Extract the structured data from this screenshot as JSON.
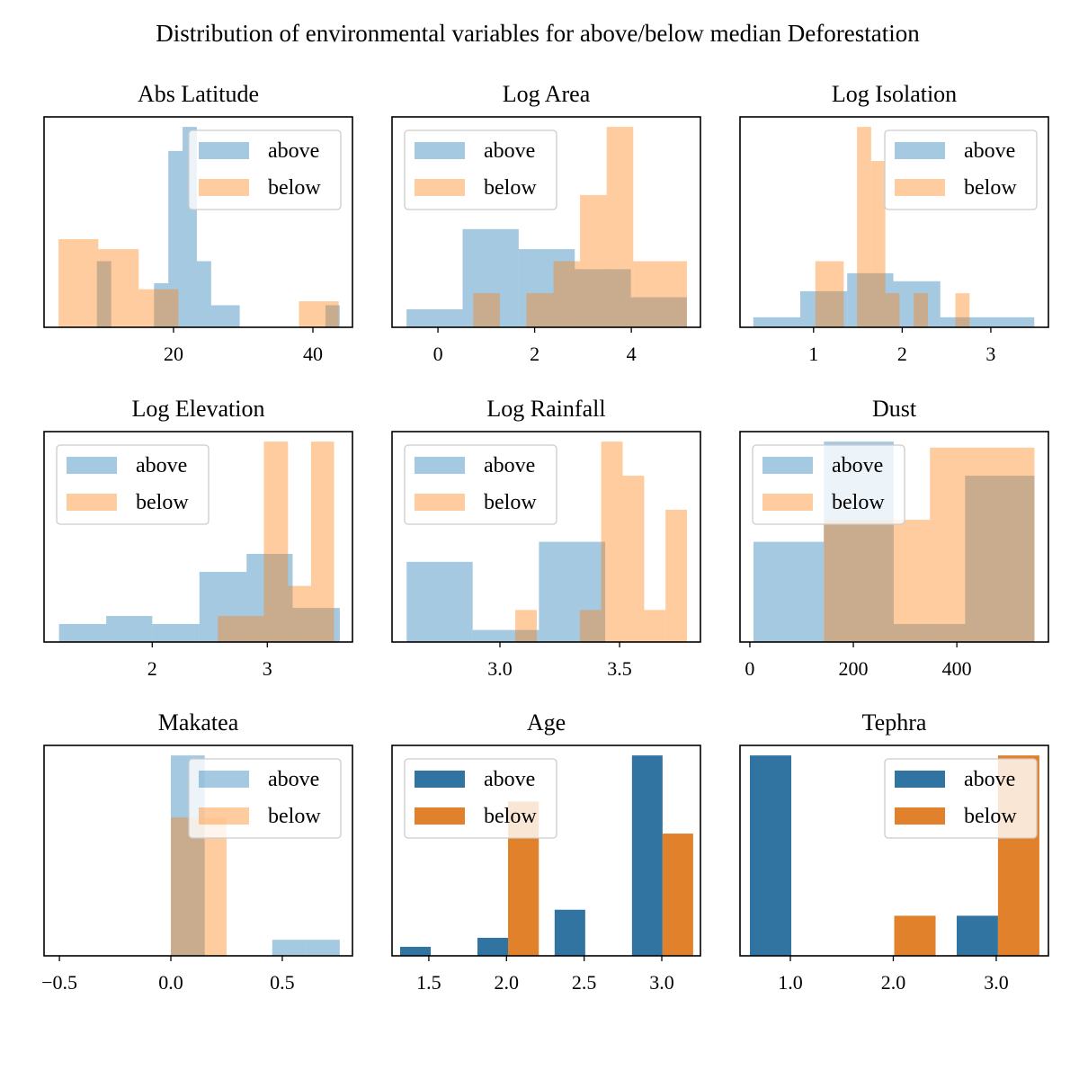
{
  "title": "Distribution of environmental variables for above/below median Deforestation",
  "chart_data": [
    {
      "type": "hist",
      "title": "Abs Latitude",
      "xlim": [
        1.42,
        45.68
      ],
      "ylim": [
        0,
        10.5
      ],
      "xticks": [
        20,
        40
      ],
      "legend": "upper right",
      "alpha": 0.4,
      "series": [
        {
          "name": "above",
          "color": "#1f77b4",
          "bins": [
            9.0,
            11.05,
            13.1,
            15.15,
            17.2,
            19.25,
            21.3,
            23.35,
            25.4,
            27.45,
            29.5,
            31.55,
            33.6,
            35.65,
            37.7,
            39.75,
            41.8,
            43.85
          ],
          "values": [
            3.3,
            0,
            0,
            0,
            2.2,
            8.8,
            10,
            3.3,
            1.1,
            1.1,
            0,
            0,
            0,
            0,
            0,
            0,
            1.1
          ]
        },
        {
          "name": "below",
          "color": "#ff7f0e",
          "bins": [
            3.5,
            9.2,
            15.0,
            20.7,
            26.5,
            32.2,
            38.0,
            43.7
          ],
          "values": [
            4.4,
            3.9,
            1.9,
            0,
            0,
            0,
            1.3
          ]
        }
      ]
    },
    {
      "type": "hist",
      "title": "Log Area",
      "xlim": [
        -0.95,
        5.43
      ],
      "ylim": [
        0,
        10.5
      ],
      "xticks": [
        0,
        2,
        4
      ],
      "legend": "upper left",
      "alpha": 0.4,
      "series": [
        {
          "name": "above",
          "color": "#1f77b4",
          "bins": [
            -0.65,
            0.51,
            1.67,
            2.83,
            3.99,
            5.15
          ],
          "values": [
            0.9,
            4.9,
            3.9,
            2.9,
            1.5
          ]
        },
        {
          "name": "below",
          "color": "#ff7f0e",
          "bins": [
            0.73,
            1.28,
            1.83,
            2.39,
            2.94,
            3.49,
            4.04,
            4.6,
            5.15
          ],
          "values": [
            1.7,
            0,
            1.7,
            3.3,
            6.6,
            10,
            3.3,
            3.3
          ]
        }
      ]
    },
    {
      "type": "hist",
      "title": "Log Isolation",
      "xlim": [
        0.17,
        3.65
      ],
      "ylim": [
        0,
        10.5
      ],
      "xticks": [
        1,
        2,
        3
      ],
      "legend": "upper right",
      "alpha": 0.4,
      "series": [
        {
          "name": "above",
          "color": "#1f77b4",
          "bins": [
            0.32,
            0.85,
            1.38,
            1.9,
            2.43,
            2.96,
            3.49
          ],
          "values": [
            0.5,
            1.8,
            2.7,
            2.3,
            0.5,
            0.5
          ]
        },
        {
          "name": "below",
          "color": "#ff7f0e",
          "bins": [
            1.02,
            1.18,
            1.34,
            1.49,
            1.65,
            1.81,
            1.97,
            2.13,
            2.29,
            2.44,
            2.6,
            2.76
          ],
          "values": [
            3.3,
            3.3,
            0,
            10,
            8.3,
            1.7,
            0,
            1.7,
            0,
            0,
            1.7
          ]
        }
      ]
    },
    {
      "type": "hist",
      "title": "Log Elevation",
      "xlim": [
        1.06,
        3.74
      ],
      "ylim": [
        0,
        10.5
      ],
      "xticks": [
        2,
        3
      ],
      "legend": "upper left",
      "alpha": 0.4,
      "series": [
        {
          "name": "above",
          "color": "#1f77b4",
          "bins": [
            1.19,
            1.6,
            2.0,
            2.41,
            2.82,
            3.22,
            3.63
          ],
          "values": [
            0.9,
            1.3,
            0.9,
            3.5,
            4.4,
            1.7
          ]
        },
        {
          "name": "below",
          "color": "#ff7f0e",
          "bins": [
            2.57,
            2.77,
            2.97,
            3.18,
            3.38,
            3.58
          ],
          "values": [
            1.3,
            1.3,
            10,
            2.8,
            10
          ]
        }
      ]
    },
    {
      "type": "hist",
      "title": "Log Rainfall",
      "xlim": [
        2.549,
        3.838
      ],
      "ylim": [
        0,
        10.5
      ],
      "xticks": [
        {
          "value": 3.0,
          "label": "3.0"
        },
        3.5
      ],
      "legend": "upper left",
      "alpha": 0.4,
      "series": [
        {
          "name": "above",
          "color": "#1f77b4",
          "bins": [
            2.61,
            2.886,
            3.163,
            3.44
          ],
          "values": [
            4.0,
            0.6,
            5.0
          ]
        },
        {
          "name": "below",
          "color": "#ff7f0e",
          "bins": [
            3.064,
            3.154,
            3.244,
            3.334,
            3.423,
            3.513,
            3.603,
            3.692,
            3.782
          ],
          "values": [
            1.6,
            0,
            0,
            1.6,
            10,
            8.3,
            1.6,
            6.6
          ]
        }
      ]
    },
    {
      "type": "hist",
      "title": "Dust",
      "xlim": [
        -19,
        577
      ],
      "ylim": [
        0,
        10.5
      ],
      "xticks": [
        0,
        200,
        400
      ],
      "legend": "upper left",
      "alpha": 0.4,
      "series": [
        {
          "name": "above",
          "color": "#1f77b4",
          "bins": [
            7,
            143,
            278,
            416,
            550
          ],
          "values": [
            5.0,
            10,
            0.9,
            8.3
          ]
        },
        {
          "name": "below",
          "color": "#ff7f0e",
          "bins": [
            143,
            348,
            550
          ],
          "values": [
            6.1,
            9.7
          ]
        }
      ]
    },
    {
      "type": "hist",
      "title": "Makatea",
      "xlim": [
        -0.569,
        0.815
      ],
      "ylim": [
        0,
        10.5
      ],
      "xticks": [
        {
          "value": -0.5,
          "label": "−0.5"
        },
        {
          "value": 0.0,
          "label": "0.0"
        },
        0.5
      ],
      "legend": "upper right",
      "alpha": 0.4,
      "series": [
        {
          "name": "above",
          "color": "#1f77b4",
          "bins": [
            0,
            0.152,
            0.303,
            0.455,
            0.606,
            0.758
          ],
          "values": [
            10,
            0,
            0,
            0.8,
            0.8
          ]
        },
        {
          "name": "below",
          "color": "#ff7f0e",
          "bins": [
            0,
            0.25
          ],
          "values": [
            6.9
          ]
        }
      ]
    },
    {
      "type": "hist",
      "title": "Age",
      "xlim": [
        1.263,
        3.249
      ],
      "ylim": [
        0,
        10.5
      ],
      "xticks": [
        1.5,
        {
          "value": 2.0,
          "label": "2.0"
        },
        2.5,
        {
          "value": 3.0,
          "label": "3.0"
        }
      ],
      "legend": "upper left",
      "alpha": 1,
      "series": [
        {
          "name": "above",
          "color": "#3274a1",
          "bins": [
            1.315,
            1.512,
            1.813,
            2.01,
            2.31,
            2.507,
            2.808,
            3.005
          ],
          "values": [
            0.45,
            0,
            0.9,
            0,
            2.3,
            0,
            10
          ]
        },
        {
          "name": "below",
          "color": "#e1812c",
          "bins": [
            2.01,
            2.208,
            3.005,
            3.202
          ],
          "values": [
            7.7,
            0,
            6.1
          ]
        }
      ]
    },
    {
      "type": "hist",
      "title": "Tephra",
      "xlim": [
        0.511,
        3.507
      ],
      "ylim": [
        0,
        10.5
      ],
      "xticks": [
        {
          "value": 1.0,
          "label": "1.0"
        },
        {
          "value": 2.0,
          "label": "2.0"
        },
        {
          "value": 3.0,
          "label": "3.0"
        }
      ],
      "legend": "upper right",
      "alpha": 1,
      "series": [
        {
          "name": "above",
          "color": "#3274a1",
          "bins": [
            0.607,
            1.009,
            2.616,
            3.017
          ],
          "values": [
            10,
            0,
            2.0
          ]
        },
        {
          "name": "below",
          "color": "#e1812c",
          "bins": [
            2.009,
            2.411,
            3.017,
            3.419
          ],
          "values": [
            2.0,
            0,
            10
          ]
        }
      ]
    }
  ]
}
